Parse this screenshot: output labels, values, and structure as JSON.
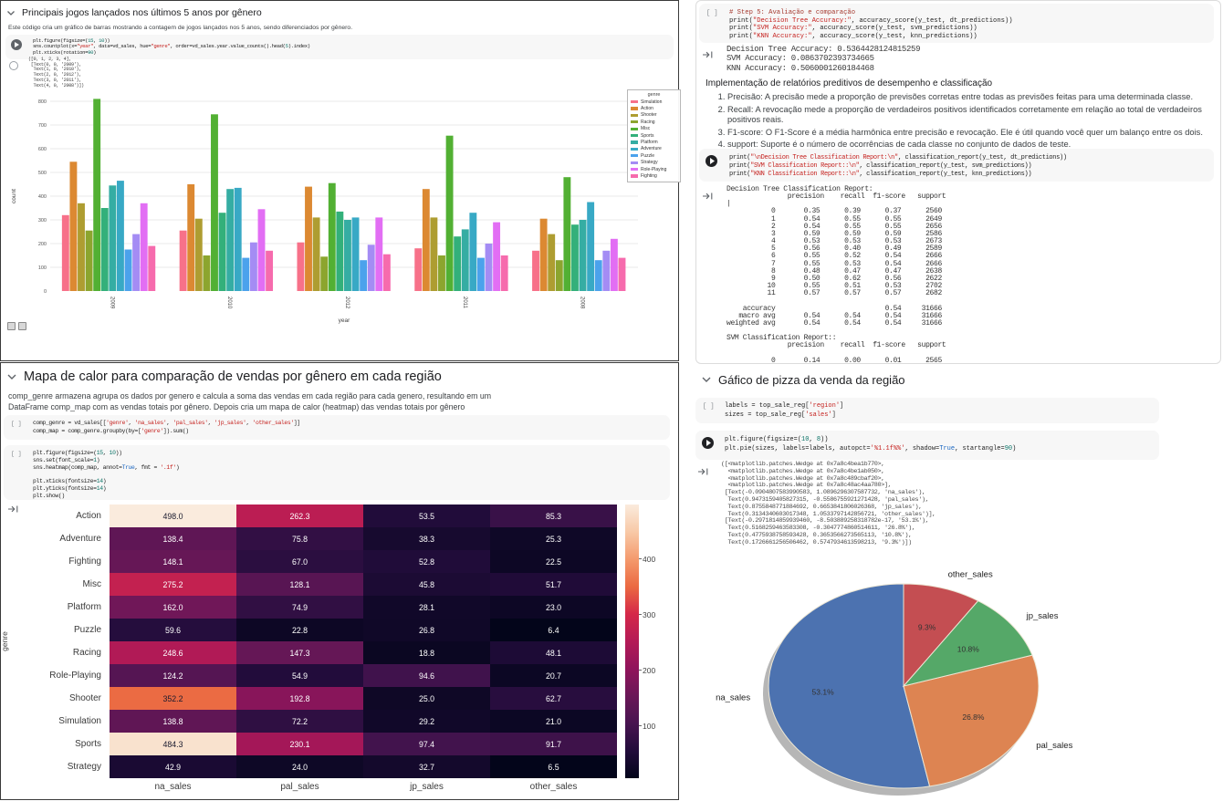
{
  "ui": {
    "cell_marker": "[ ]",
    "icons": {
      "run_icon": "play-triangle",
      "output_icon": "arrow-to-bracket",
      "collapse_icon": "chevron-down"
    }
  },
  "q_top_left": {
    "title": "Principais jogos lançados nos últimos 5 anos por gênero",
    "description": "Este código cria um gráfico de barras mostrando a contagem de jogos lançados nos 5 anos, sendo diferenciados por gênero.",
    "code_lines": [
      "plt.figure(figsize=(15, 10))",
      "sns.countplot(x=\"year\", data=vd_sales, hue=\"genre\", order=vd_sales.year.value_counts().head(5).index)",
      "plt.xticks(rotation=90)"
    ],
    "output_lines": [
      "([0, 1, 2, 3, 4],",
      " [Text(0, 0, '2009'),",
      "  Text(1, 0, '2010'),",
      "  Text(2, 0, '2012'),",
      "  Text(3, 0, '2011'),",
      "  Text(4, 0, '2008')])"
    ]
  },
  "q_top_right": {
    "code1_lines": [
      "# Step 5: Avaliação e comparação",
      "print(\"Decision Tree Accuracy:\", accuracy_score(y_test, dt_predictions))",
      "print(\"SVM Accuracy:\", accuracy_score(y_test, svm_predictions))",
      "print(\"KNN Accuracy:\", accuracy_score(y_test, knn_predictions))"
    ],
    "output1_lines": [
      "Decision Tree Accuracy: 0.5364428124815259",
      "SVM Accuracy: 0.0863702393734665",
      "KNN Accuracy: 0.5060001260184468"
    ],
    "markdown_heading": "Implementação de relatórios preditivos de desempenho e classificação",
    "list_items": [
      "Precisão: A precisão mede a proporção de previsões corretas entre todas as previsões feitas para uma determinada classe.",
      "Recall: A revocação mede a proporção de verdadeiros positivos identificados corretamente em relação ao total de verdadeiros positivos reais.",
      "F1-score: O F1-Score é a média harmônica entre precisão e revocação. Ele é útil quando você quer um balanço entre os dois.",
      "support: Suporte é o número de ocorrências de cada classe no conjunto de dados de teste."
    ],
    "code2_lines": [
      "print(\"\\nDecision Tree Classification Report:\\n\", classification_report(y_test, dt_predictions))",
      "print(\"SVM Classification Report::\\n\", classification_report(y_test, svm_predictions))",
      "print(\"KNN Classification Report::\\n\", classification_report(y_test, knn_predictions))"
    ],
    "report_lines": [
      "Decision Tree Classification Report:",
      "               precision    recall  f1-score   support",
      "|",
      "           0       0.35      0.39      0.37      2560",
      "           1       0.54      0.55      0.55      2649",
      "           2       0.54      0.55      0.55      2656",
      "           3       0.59      0.59      0.59      2586",
      "           4       0.53      0.53      0.53      2673",
      "           5       0.56      0.40      0.49      2589",
      "           6       0.55      0.52      0.54      2666",
      "           7       0.55      0.53      0.54      2666",
      "           8       0.48      0.47      0.47      2638",
      "           9       0.50      0.62      0.56      2622",
      "          10       0.55      0.51      0.53      2702",
      "          11       0.57      0.57      0.57      2682",
      "",
      "    accuracy                           0.54     31666",
      "   macro avg       0.54      0.54      0.54     31666",
      "weighted avg       0.54      0.54      0.54     31666",
      "",
      "SVM Classification Report::",
      "               precision    recall  f1-score   support",
      "",
      "           0       0.14      0.00      0.01      2565"
    ]
  },
  "q_bottom_left": {
    "title": "Mapa de calor para comparação de vendas por gênero em cada região",
    "description_lines": [
      "comp_genre armazena agrupa os dados por genero e calcula a soma das vendas em cada região para cada genero, resultando em um",
      "DataFrame comp_map com as vendas totais por gênero. Depois  cria um mapa  de calor (heatmap) das vendas totais por gênero"
    ],
    "code1_lines": [
      "comp_genre = vd_sales[['genre', 'na_sales', 'pal_sales', 'jp_sales', 'other_sales']]",
      "comp_map = comp_genre.groupby(by=['genre']).sum()"
    ],
    "code2_lines": [
      "plt.figure(figsize=(15, 10))",
      "sns.set(font_scale=1)",
      "sns.heatmap(comp_map, annot=True, fmt = '.1f')",
      "",
      "plt.xticks(fontsize=14)",
      "plt.yticks(fontsize=14)",
      "plt.show()"
    ]
  },
  "q_bottom_right": {
    "title": "Gáfico de pizza da venda da região",
    "code1_lines": [
      "labels = top_sale_reg['region']",
      "sizes = top_sale_reg['sales']"
    ],
    "code2_lines": [
      "plt.figure(figsize=(10, 8))",
      "plt.pie(sizes, labels=labels, autopct='%1.1f%%', shadow=True, startangle=90)"
    ],
    "output_lines": [
      "([<matplotlib.patches.Wedge at 0x7a8c4bea1b770>,",
      "  <matplotlib.patches.Wedge at 0x7a8c4be1ab050>,",
      "  <matplotlib.patches.Wedge at 0x7a8c489cbaf20>,",
      "  <matplotlib.patches.Wedge at 0x7a8c48ac4aa780>],",
      " [Text(-0.0904807583990583, 1.0896296307587732, 'na_sales'),",
      "  Text(0.9473159405827315, -0.5586755921271428, 'pal_sales'),",
      "  Text(0.8755848771884692, 0.6653841806026368, 'jp_sales'),",
      "  Text(0.3134340603017348, 1.0533797142856721, 'other_sales')],",
      " [Text(-0.2971814859939460, -8.503889258318782e-17, '53.1%'),",
      "  Text(0.5168259463583308, -0.3047774860514611, '26.8%'),",
      "  Text(0.4775938758593428, 0.3653566273565113, '10.8%'),",
      "  Text(0.1726661256506462, 0.5747934613598213, '9.3%')])"
    ]
  },
  "chart_data": [
    {
      "id": "bar-genre-year",
      "type": "bar",
      "title": "",
      "xlabel": "year",
      "ylabel": "count",
      "ylim": [
        0,
        800
      ],
      "yticks": [
        0,
        100,
        200,
        300,
        400,
        500,
        600,
        700,
        800
      ],
      "grid": true,
      "legend_title": "genre",
      "legend_position": "upper right",
      "categories": [
        "2009",
        "2010",
        "2012",
        "2011",
        "2008"
      ],
      "series": [
        {
          "name": "Simulation",
          "color": "#f77189",
          "values": [
            320,
            255,
            205,
            180,
            170
          ]
        },
        {
          "name": "Action",
          "color": "#dc8932",
          "values": [
            545,
            450,
            440,
            430,
            305
          ]
        },
        {
          "name": "Shooter",
          "color": "#ae9d31",
          "values": [
            370,
            305,
            310,
            310,
            240
          ]
        },
        {
          "name": "Racing",
          "color": "#8ca52e",
          "values": [
            255,
            150,
            145,
            150,
            130
          ]
        },
        {
          "name": "Misc",
          "color": "#52b033",
          "values": [
            810,
            745,
            455,
            655,
            480
          ]
        },
        {
          "name": "Sports",
          "color": "#33b07a",
          "values": [
            350,
            330,
            335,
            230,
            280
          ]
        },
        {
          "name": "Platform",
          "color": "#35ada3",
          "values": [
            445,
            430,
            300,
            260,
            300
          ]
        },
        {
          "name": "Adventure",
          "color": "#38a9c5",
          "values": [
            465,
            435,
            310,
            330,
            375
          ]
        },
        {
          "name": "Puzzle",
          "color": "#4ba2ec",
          "values": [
            175,
            140,
            130,
            140,
            130
          ]
        },
        {
          "name": "Strategy",
          "color": "#a48cf4",
          "values": [
            240,
            205,
            195,
            200,
            170
          ]
        },
        {
          "name": "Role-Playing",
          "color": "#e26ef4",
          "values": [
            370,
            345,
            310,
            290,
            220
          ]
        },
        {
          "name": "Fighting",
          "color": "#f66bad",
          "values": [
            190,
            170,
            155,
            150,
            140
          ]
        }
      ]
    },
    {
      "id": "heatmap-sales",
      "type": "heatmap",
      "ylabel": "genre",
      "annot_format": ".1f",
      "rows": [
        "Action",
        "Adventure",
        "Fighting",
        "Misc",
        "Platform",
        "Puzzle",
        "Racing",
        "Role-Playing",
        "Shooter",
        "Simulation",
        "Sports",
        "Strategy"
      ],
      "cols": [
        "na_sales",
        "pal_sales",
        "jp_sales",
        "other_sales"
      ],
      "values": [
        [
          498.0,
          262.3,
          53.5,
          85.3
        ],
        [
          138.4,
          75.8,
          38.3,
          25.3
        ],
        [
          148.1,
          67.0,
          52.8,
          22.5
        ],
        [
          275.2,
          128.1,
          45.8,
          51.7
        ],
        [
          162.0,
          74.9,
          28.1,
          23.0
        ],
        [
          59.6,
          22.8,
          26.8,
          6.4
        ],
        [
          248.6,
          147.3,
          18.8,
          48.1
        ],
        [
          124.2,
          54.9,
          94.6,
          20.7
        ],
        [
          352.2,
          192.8,
          25.0,
          62.7
        ],
        [
          138.8,
          72.2,
          29.2,
          21.0
        ],
        [
          484.3,
          230.1,
          97.4,
          91.7
        ],
        [
          42.9,
          24.0,
          32.7,
          6.5
        ]
      ],
      "vmin": 6.4,
      "vmax": 498.0,
      "colorbar_ticks": [
        100,
        200,
        300,
        400
      ]
    },
    {
      "id": "pie-region",
      "type": "pie",
      "labels": [
        "na_sales",
        "pal_sales",
        "jp_sales",
        "other_sales"
      ],
      "values": [
        53.1,
        26.8,
        10.8,
        9.3
      ],
      "pct_labels": [
        "53.1%",
        "26.8%",
        "10.8%",
        "9.3%"
      ],
      "colors": [
        "#4C72B0",
        "#DD8452",
        "#55A868",
        "#C44E52"
      ],
      "startangle": 90,
      "shadow": true
    }
  ]
}
